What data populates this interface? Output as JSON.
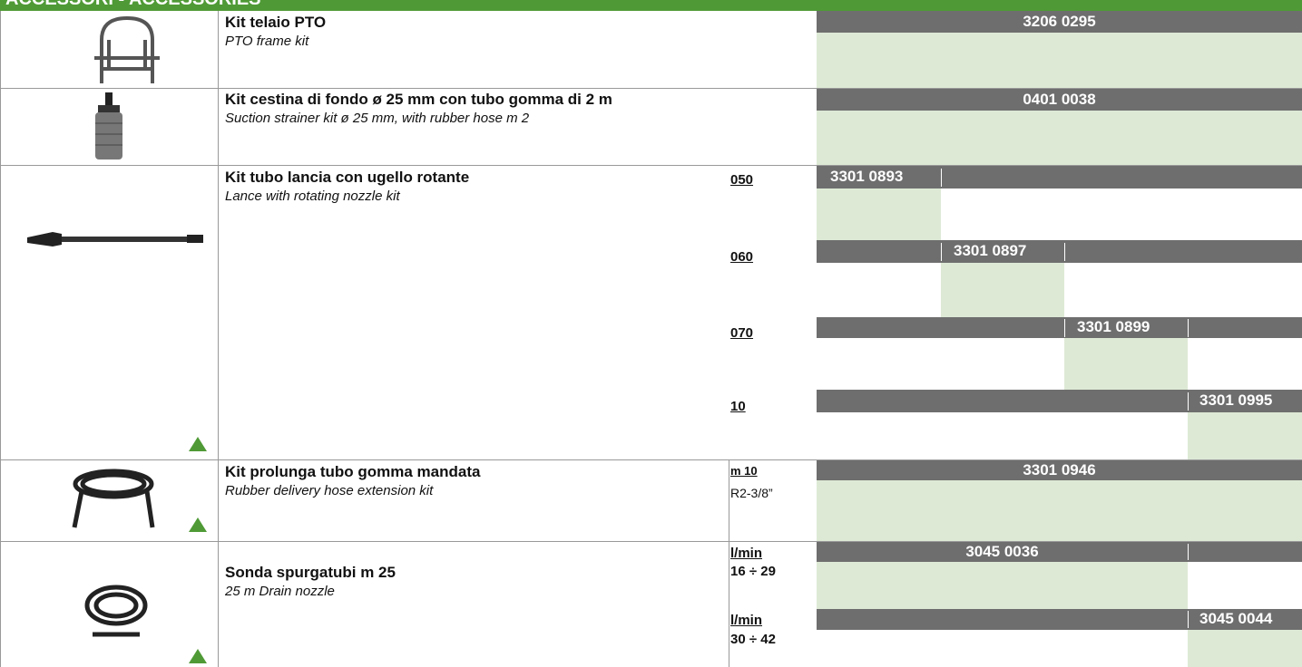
{
  "header": {
    "title": "ACCESSORI - ACCESSORIES"
  },
  "rows": [
    {
      "title": "Kit telaio PTO",
      "subtitle": "PTO frame kit",
      "options": [
        {
          "code": "3206 0295"
        }
      ]
    },
    {
      "title": "Kit cestina di fondo ø 25 mm con tubo gomma di 2 m",
      "subtitle": "Suction strainer kit ø 25 mm, with rubber hose m 2",
      "options": [
        {
          "code": "0401 0038"
        }
      ]
    },
    {
      "title": "Kit tubo lancia con ugello rotante",
      "subtitle": "Lance with rotating nozzle kit",
      "options": [
        {
          "labels": [
            "050"
          ],
          "code": "3301 0893"
        },
        {
          "labels": [
            "060"
          ],
          "code": "3301 0897"
        },
        {
          "labels": [
            "070"
          ],
          "code": "3301 0899"
        },
        {
          "labels": [
            "10"
          ],
          "code": "3301 0995"
        }
      ]
    },
    {
      "title": "Kit prolunga tubo gomma mandata",
      "subtitle": "Rubber delivery hose extension kit",
      "options": [
        {
          "labels": [
            "m 10",
            "R2-3/8”"
          ],
          "code": "3301 0946"
        }
      ]
    },
    {
      "title": "Sonda spurgatubi m 25",
      "subtitle": "25 m Drain nozzle",
      "options": [
        {
          "labels": [
            "l/min",
            "16 ÷ 29"
          ],
          "code": "3045 0036"
        },
        {
          "labels": [
            "l/min",
            "30 ÷ 42"
          ],
          "code": "3045 0044"
        }
      ]
    }
  ]
}
